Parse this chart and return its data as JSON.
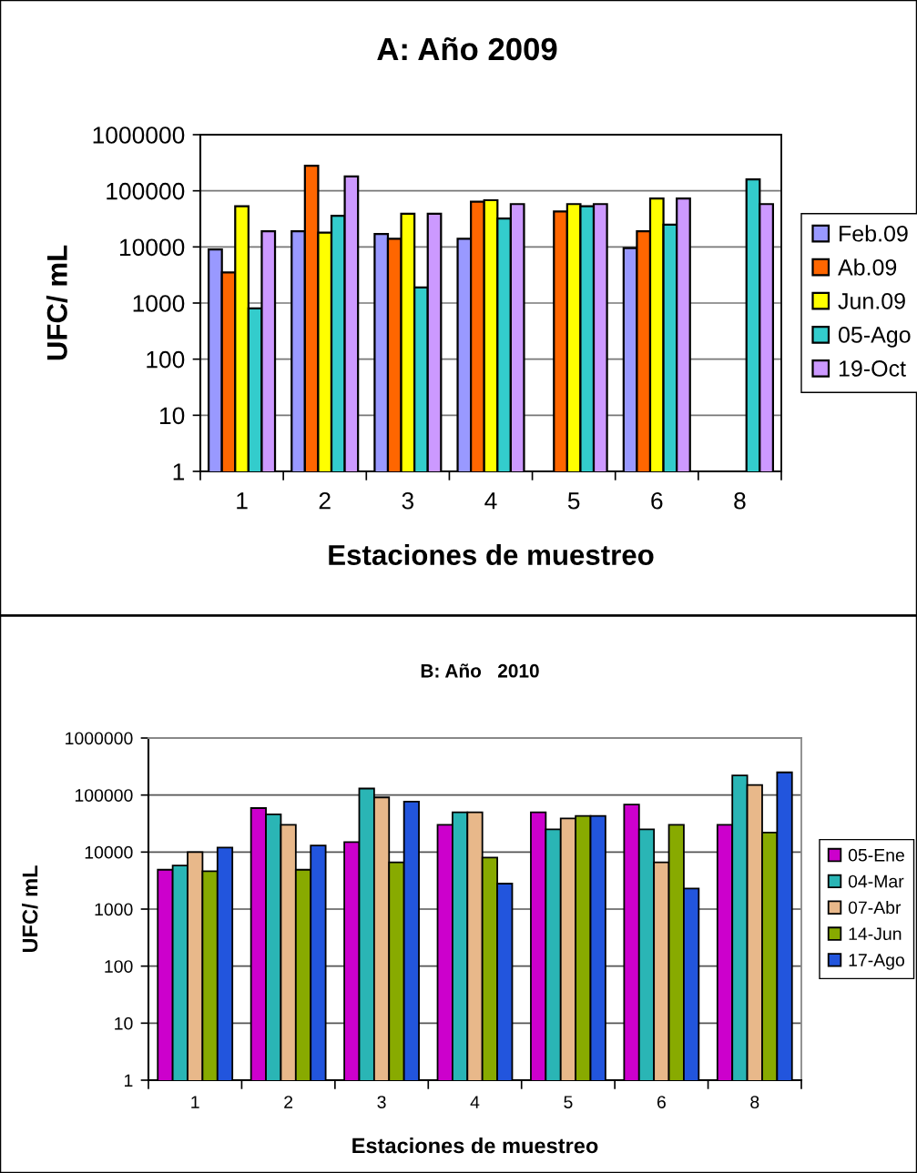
{
  "chart_data": [
    {
      "type": "bar",
      "title": "A: Año 2009",
      "xlabel": "Estaciones de muestreo",
      "ylabel": "UFC/ mL",
      "categories": [
        "1",
        "2",
        "3",
        "4",
        "5",
        "6",
        "8"
      ],
      "series": [
        {
          "name": "Feb.09",
          "color": "#9999ff",
          "values": [
            9000,
            19000,
            17000,
            14000,
            null,
            9500,
            null
          ]
        },
        {
          "name": "Ab.09",
          "color": "#ff6600",
          "values": [
            3500,
            280000,
            14000,
            64000,
            43000,
            19000,
            null
          ]
        },
        {
          "name": "Jun.09",
          "color": "#ffff00",
          "values": [
            53000,
            18000,
            39000,
            68000,
            58000,
            73000,
            null
          ]
        },
        {
          "name": "05-Ago",
          "color": "#33cccc",
          "values": [
            800,
            36000,
            1900,
            32000,
            53000,
            25000,
            160000
          ]
        },
        {
          "name": "19-Oct",
          "color": "#cc99ff",
          "values": [
            19000,
            180000,
            39000,
            58000,
            58000,
            73000,
            58000
          ]
        }
      ],
      "log": true,
      "ylim": [
        1,
        1000000
      ],
      "yticks": [
        1,
        10,
        100,
        1000,
        10000,
        100000,
        1000000
      ],
      "grid": "y",
      "legend": "right"
    },
    {
      "type": "bar",
      "title": "B: Año   2010",
      "xlabel": "Estaciones de muestreo",
      "ylabel": "UFC/ mL",
      "categories": [
        "1",
        "2",
        "3",
        "4",
        "5",
        "6",
        "8"
      ],
      "series": [
        {
          "name": "05-Ene",
          "color": "#cc00cc",
          "values": [
            4900,
            59000,
            15000,
            30000,
            50000,
            68000,
            30000
          ]
        },
        {
          "name": "04-Mar",
          "color": "#2ab5b5",
          "values": [
            5800,
            46000,
            130000,
            50000,
            25000,
            25000,
            220000
          ]
        },
        {
          "name": "07-Abr",
          "color": "#e8b88a",
          "values": [
            10000,
            30000,
            91000,
            50000,
            39000,
            6600,
            150000
          ]
        },
        {
          "name": "14-Jun",
          "color": "#88aa00",
          "values": [
            4600,
            4900,
            6600,
            8000,
            43000,
            30000,
            22000
          ]
        },
        {
          "name": "17-Ago",
          "color": "#2255dd",
          "values": [
            12000,
            13000,
            77000,
            2800,
            43000,
            2300,
            250000
          ]
        }
      ],
      "log": true,
      "ylim": [
        1,
        1000000
      ],
      "yticks": [
        1,
        10,
        100,
        1000,
        10000,
        100000,
        1000000
      ],
      "grid": "y",
      "legend": "right"
    }
  ]
}
